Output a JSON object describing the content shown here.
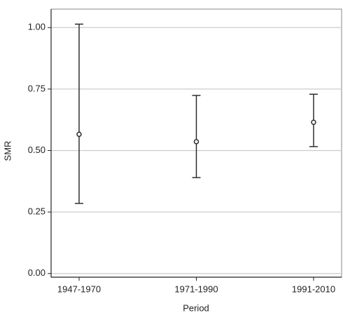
{
  "chart_data": {
    "type": "errorbar",
    "x_label": "Period",
    "y_label": "SMR",
    "categories": [
      "1947-1970",
      "1971-1990",
      "1991-2010"
    ],
    "values": [
      0.566,
      0.536,
      0.615
    ],
    "lower": [
      0.285,
      0.39,
      0.516
    ],
    "upper": [
      1.014,
      0.724,
      0.729
    ],
    "color": "#222222",
    "ylim": [
      -0.015,
      1.075
    ],
    "yticks": [
      {
        "value": 0,
        "label": "0.00"
      },
      {
        "value": 0.25,
        "label": "0.25"
      },
      {
        "value": 0.5,
        "label": "0.50"
      },
      {
        "value": 0.75,
        "label": "0.75"
      },
      {
        "value": 1,
        "label": "1.00"
      }
    ],
    "grid": true
  }
}
